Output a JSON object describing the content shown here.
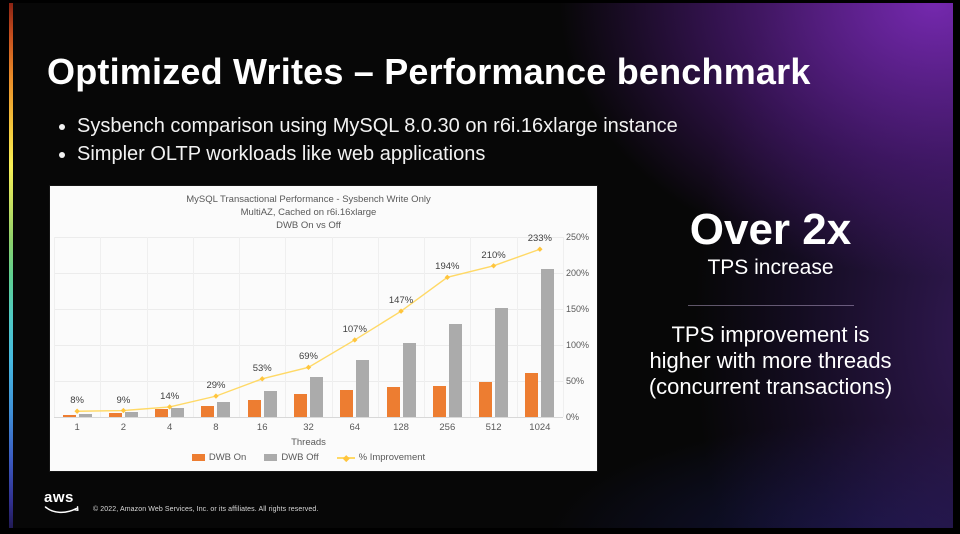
{
  "slide": {
    "title": "Optimized Writes – Performance benchmark",
    "bullets": [
      "Sysbench comparison using MySQL 8.0.30 on r6i.16xlarge instance",
      "Simpler OLTP workloads like web applications"
    ],
    "callout": {
      "headline": "Over 2x",
      "subheadline": "TPS increase",
      "body_lines": [
        "TPS improvement is",
        "higher with more threads",
        "(concurrent transactions)"
      ]
    },
    "footer": {
      "logo_text": "aws",
      "copyright": "© 2022, Amazon Web Services, Inc. or its affiliates. All rights reserved."
    },
    "colors": {
      "accent_orange": "#ED7D31",
      "bar_gray": "#ABABAB",
      "line_yellow": "#FFD966",
      "marker_yellow": "#FFC53D",
      "purple_glow": "#5B1F8A"
    }
  },
  "chart_data": {
    "type": "bar",
    "subtype": "grouped bars + percent line (combo)",
    "title_lines": [
      "MySQL Transactional Performance - Sysbench Write Only",
      "MultiAZ, Cached on r6i.16xlarge",
      "DWB On vs Off"
    ],
    "xlabel": "Threads",
    "ylabel": "",
    "categories": [
      "1",
      "2",
      "4",
      "8",
      "16",
      "32",
      "64",
      "128",
      "256",
      "512",
      "1024"
    ],
    "left_axis": {
      "visible": false,
      "note": "TPS scale not labeled in source; bar values estimated in right-axis units"
    },
    "right_axis": {
      "min": 0,
      "max": 250,
      "tick_labels": [
        "0%",
        "50%",
        "100%",
        "150%",
        "200%",
        "250%"
      ]
    },
    "grid": true,
    "series": [
      {
        "name": "DWB On",
        "type": "bar",
        "color": "#ED7D31",
        "values": [
          3.3,
          6.0,
          11.5,
          15.8,
          23.3,
          32.5,
          38.0,
          41.3,
          42.5,
          48.3,
          61.5
        ]
      },
      {
        "name": "DWB Off",
        "type": "bar",
        "color": "#ABABAB",
        "values": [
          3.5,
          6.5,
          12.5,
          20.3,
          36.1,
          55.5,
          78.8,
          103.3,
          128.8,
          151.5,
          206.0
        ]
      },
      {
        "name": "% Improvement",
        "type": "line",
        "axis": "right",
        "color": "#FFD966",
        "marker_color": "#FFC53D",
        "values": [
          8,
          9,
          14,
          29,
          53,
          69,
          107,
          147,
          194,
          210,
          233
        ],
        "point_labels": [
          "8%",
          "9%",
          "14%",
          "29%",
          "53%",
          "69%",
          "107%",
          "147%",
          "194%",
          "210%",
          "233%"
        ]
      }
    ],
    "legend": {
      "position": "bottom",
      "entries": [
        "DWB On",
        "DWB Off",
        "% Improvement"
      ]
    }
  }
}
